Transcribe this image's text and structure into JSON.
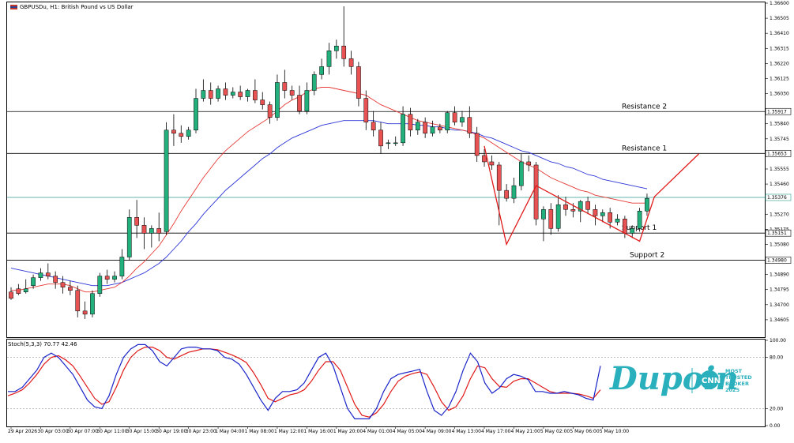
{
  "chart_data": {
    "type": "candlestick",
    "title": "GBPUSDu, H1: British Pound vs US Dollar",
    "price_axis": {
      "range": [
        1.345,
        1.366
      ],
      "ticks": [
        "1.36600",
        "1.36505",
        "1.36410",
        "1.36315",
        "1.36220",
        "1.36125",
        "1.36030",
        "1.35840",
        "1.35745",
        "1.35555",
        "1.35460",
        "1.35270",
        "1.35175",
        "1.35080",
        "1.34890",
        "1.34795",
        "1.34700",
        "1.34605"
      ]
    },
    "time_axis": {
      "labels": [
        "29 Apr 2026",
        "30 Apr 03:00",
        "30 Apr 07:00",
        "30 Apr 11:00",
        "30 Apr 15:00",
        "30 Apr 19:00",
        "30 Apr 23:00",
        "1 May 04:00",
        "1 May 08:00",
        "1 May 12:00",
        "1 May 16:00",
        "1 May 20:00",
        "4 May 01:00",
        "4 May 05:00",
        "4 May 09:00",
        "4 May 13:00",
        "4 May 17:00",
        "4 May 21:00",
        "5 May 02:00",
        "5 May 06:00",
        "5 May 10:00"
      ],
      "label_index": [
        0,
        4,
        8,
        12,
        16,
        20,
        24,
        28,
        32,
        36,
        40,
        44,
        48,
        52,
        56,
        60,
        64,
        68,
        72,
        76,
        80
      ]
    },
    "levels": [
      {
        "name": "Resistance 2",
        "price": 1.35917,
        "label": "1.35917",
        "color": "#000000"
      },
      {
        "name": "Resistance 1",
        "price": 1.35653,
        "label": "1.35653",
        "color": "#000000"
      },
      {
        "name": "",
        "price": 1.35376,
        "label": "1.35376",
        "color": "#2a9d8f"
      },
      {
        "name": "Support 1",
        "price": 1.35151,
        "label": "1.35151",
        "color": "#000000"
      },
      {
        "name": "Support 2",
        "price": 1.3498,
        "label": "1.34980",
        "color": "#000000"
      }
    ],
    "candles": [
      [
        1.3478,
        1.3481,
        1.3474,
        1.3473
      ],
      [
        1.348,
        1.3483,
        1.3477,
        1.3476
      ],
      [
        1.3478,
        1.3486,
        1.348,
        1.3477
      ],
      [
        1.3482,
        1.3489,
        1.3487,
        1.348
      ],
      [
        1.3487,
        1.3493,
        1.349,
        1.3485
      ],
      [
        1.349,
        1.3496,
        1.3488,
        1.3486
      ],
      [
        1.3488,
        1.3491,
        1.3484,
        1.348
      ],
      [
        1.3484,
        1.3488,
        1.3481,
        1.3477
      ],
      [
        1.3481,
        1.3485,
        1.3479,
        1.3476
      ],
      [
        1.3479,
        1.3482,
        1.3466,
        1.3462
      ],
      [
        1.3466,
        1.3472,
        1.3464,
        1.3461
      ],
      [
        1.3464,
        1.3479,
        1.3477,
        1.3462
      ],
      [
        1.3477,
        1.349,
        1.3488,
        1.3475
      ],
      [
        1.3488,
        1.3492,
        1.3486,
        1.3483
      ],
      [
        1.3486,
        1.3491,
        1.3488,
        1.3484
      ],
      [
        1.3488,
        1.3505,
        1.35,
        1.3486
      ],
      [
        1.35,
        1.353,
        1.3525,
        1.3498
      ],
      [
        1.3525,
        1.3536,
        1.352,
        1.3512
      ],
      [
        1.352,
        1.3525,
        1.3515,
        1.3505
      ],
      [
        1.3515,
        1.352,
        1.3518,
        1.3506
      ],
      [
        1.3518,
        1.3528,
        1.3515,
        1.351
      ],
      [
        1.3516,
        1.3585,
        1.358,
        1.3514
      ],
      [
        1.358,
        1.359,
        1.3578,
        1.357
      ],
      [
        1.3578,
        1.3583,
        1.3576,
        1.3572
      ],
      [
        1.3576,
        1.3582,
        1.358,
        1.3574
      ],
      [
        1.358,
        1.3606,
        1.36,
        1.3578
      ],
      [
        1.36,
        1.3612,
        1.3605,
        1.3598
      ],
      [
        1.3605,
        1.361,
        1.36,
        1.3596
      ],
      [
        1.36,
        1.3608,
        1.3606,
        1.3598
      ],
      [
        1.3606,
        1.361,
        1.3602,
        1.3599
      ],
      [
        1.3602,
        1.3607,
        1.3604,
        1.36
      ],
      [
        1.3604,
        1.3608,
        1.3601,
        1.3599
      ],
      [
        1.3601,
        1.3606,
        1.3605,
        1.3598
      ],
      [
        1.3605,
        1.3612,
        1.3599,
        1.3597
      ],
      [
        1.3599,
        1.3604,
        1.3596,
        1.3593
      ],
      [
        1.3596,
        1.3598,
        1.3588,
        1.3584
      ],
      [
        1.3588,
        1.3615,
        1.361,
        1.3586
      ],
      [
        1.361,
        1.3618,
        1.3605,
        1.36
      ],
      [
        1.3605,
        1.3608,
        1.3602,
        1.3599
      ],
      [
        1.3602,
        1.3608,
        1.3592,
        1.359
      ],
      [
        1.3592,
        1.361,
        1.3605,
        1.359
      ],
      [
        1.3605,
        1.3617,
        1.3615,
        1.3602
      ],
      [
        1.3615,
        1.3625,
        1.362,
        1.3612
      ],
      [
        1.362,
        1.3635,
        1.363,
        1.3615
      ],
      [
        1.363,
        1.3637,
        1.3633,
        1.3625
      ],
      [
        1.3633,
        1.3658,
        1.3625,
        1.362
      ],
      [
        1.3625,
        1.363,
        1.362,
        1.3615
      ],
      [
        1.362,
        1.3623,
        1.36,
        1.3595
      ],
      [
        1.36,
        1.3605,
        1.3585,
        1.358
      ],
      [
        1.3585,
        1.3592,
        1.358,
        1.3576
      ],
      [
        1.358,
        1.3585,
        1.357,
        1.3565
      ],
      [
        1.3572,
        1.3574,
        1.3572,
        1.3568
      ],
      [
        1.3572,
        1.3576,
        1.3572,
        1.357
      ],
      [
        1.3572,
        1.3595,
        1.359,
        1.357
      ],
      [
        1.359,
        1.3594,
        1.358,
        1.3576
      ],
      [
        1.358,
        1.3587,
        1.3585,
        1.3577
      ],
      [
        1.3585,
        1.3588,
        1.3578,
        1.3575
      ],
      [
        1.3578,
        1.3586,
        1.3582,
        1.3576
      ],
      [
        1.3582,
        1.3584,
        1.358,
        1.3578
      ],
      [
        1.358,
        1.3592,
        1.3591,
        1.3578
      ],
      [
        1.3591,
        1.3595,
        1.3585,
        1.3583
      ],
      [
        1.3585,
        1.3592,
        1.3588,
        1.3582
      ],
      [
        1.3588,
        1.3595,
        1.3578,
        1.3575
      ],
      [
        1.3578,
        1.3582,
        1.3564,
        1.356
      ],
      [
        1.3564,
        1.3568,
        1.356,
        1.3557
      ],
      [
        1.356,
        1.3564,
        1.3558,
        1.3555
      ],
      [
        1.3558,
        1.356,
        1.3542,
        1.352
      ],
      [
        1.3542,
        1.3546,
        1.3537,
        1.3535
      ],
      [
        1.3537,
        1.355,
        1.3545,
        1.3534
      ],
      [
        1.3545,
        1.3565,
        1.356,
        1.3542
      ],
      [
        1.356,
        1.3564,
        1.3558,
        1.3554
      ],
      [
        1.3558,
        1.356,
        1.3524,
        1.352
      ],
      [
        1.3524,
        1.3532,
        1.353,
        1.351
      ],
      [
        1.353,
        1.3534,
        1.3518,
        1.3514
      ],
      [
        1.3518,
        1.3539,
        1.3533,
        1.3516
      ],
      [
        1.3533,
        1.3538,
        1.353,
        1.3526
      ],
      [
        1.353,
        1.3534,
        1.3529,
        1.3525
      ],
      [
        1.3529,
        1.3536,
        1.3535,
        1.3522
      ],
      [
        1.3535,
        1.3538,
        1.353,
        1.3527
      ],
      [
        1.353,
        1.3533,
        1.3526,
        1.352
      ],
      [
        1.3526,
        1.353,
        1.3528,
        1.3522
      ],
      [
        1.3528,
        1.3531,
        1.3522,
        1.3518
      ],
      [
        1.3522,
        1.3527,
        1.3524,
        1.352
      ],
      [
        1.3524,
        1.3526,
        1.3515,
        1.3512
      ],
      [
        1.3515,
        1.352,
        1.3518,
        1.3512
      ],
      [
        1.3518,
        1.3531,
        1.3529,
        1.3516
      ],
      [
        1.3529,
        1.354,
        1.3537,
        1.3526
      ]
    ],
    "ma_fast": [
      1.3479,
      1.3479,
      1.348,
      1.3481,
      1.3482,
      1.3483,
      1.3483,
      1.3483,
      1.3482,
      1.348,
      1.3478,
      1.3478,
      1.3479,
      1.348,
      1.3481,
      1.3484,
      1.3488,
      1.3493,
      1.3497,
      1.3502,
      1.3507,
      1.3514,
      1.3521,
      1.3529,
      1.3536,
      1.3543,
      1.355,
      1.3556,
      1.3562,
      1.3567,
      1.3571,
      1.3575,
      1.3579,
      1.3582,
      1.3585,
      1.3588,
      1.3592,
      1.3596,
      1.3599,
      1.3601,
      1.3604,
      1.3606,
      1.3607,
      1.3607,
      1.3606,
      1.3605,
      1.3604,
      1.3603,
      1.3602,
      1.3599,
      1.3596,
      1.3594,
      1.3592,
      1.359,
      1.3588,
      1.3586,
      1.3585,
      1.3584,
      1.3583,
      1.3582,
      1.3581,
      1.358,
      1.3579,
      1.3577,
      1.3575,
      1.3572,
      1.3569,
      1.3566,
      1.3563,
      1.356,
      1.3558,
      1.3556,
      1.3553,
      1.355,
      1.3548,
      1.3546,
      1.3544,
      1.3542,
      1.3541,
      1.3539,
      1.3538,
      1.3537,
      1.3536,
      1.3535,
      1.3534,
      1.3534,
      1.3534
    ],
    "ma_slow": [
      1.3493,
      1.3492,
      1.3491,
      1.349,
      1.3489,
      1.3488,
      1.3487,
      1.3486,
      1.3485,
      1.3484,
      1.3483,
      1.3482,
      1.3482,
      1.3482,
      1.3483,
      1.3484,
      1.3486,
      1.3488,
      1.349,
      1.3493,
      1.3496,
      1.35,
      1.3505,
      1.351,
      1.3516,
      1.3521,
      1.3527,
      1.3532,
      1.3537,
      1.3542,
      1.3546,
      1.355,
      1.3554,
      1.3558,
      1.3562,
      1.3565,
      1.3569,
      1.3572,
      1.3575,
      1.3577,
      1.3579,
      1.3581,
      1.3583,
      1.3584,
      1.3585,
      1.3586,
      1.3586,
      1.3586,
      1.3586,
      1.3586,
      1.3585,
      1.3584,
      1.3584,
      1.3584,
      1.3584,
      1.3583,
      1.3583,
      1.3582,
      1.3582,
      1.3581,
      1.358,
      1.358,
      1.3579,
      1.3578,
      1.3576,
      1.3575,
      1.3573,
      1.3571,
      1.3569,
      1.3567,
      1.3566,
      1.3564,
      1.3562,
      1.356,
      1.3559,
      1.3557,
      1.3556,
      1.3554,
      1.3552,
      1.3551,
      1.3549,
      1.3548,
      1.3547,
      1.3546,
      1.3545,
      1.3544,
      1.3543
    ],
    "pattern_line": [
      {
        "i": 64,
        "p": 1.357
      },
      {
        "i": 67,
        "p": 1.3508
      },
      {
        "i": 71,
        "p": 1.3545
      },
      {
        "i": 85,
        "p": 1.351
      },
      {
        "i": 87,
        "p": 1.3538
      },
      {
        "i": 93,
        "p": 1.3565
      }
    ],
    "stochastic": {
      "label": "Stoch(5,3,3) 70.77 42.46",
      "ticks": [
        "100.00",
        "80.00",
        "20.00",
        "0.00"
      ],
      "range": [
        0,
        100
      ],
      "k": [
        40,
        40,
        45,
        55,
        65,
        80,
        85,
        80,
        70,
        60,
        45,
        30,
        22,
        20,
        35,
        60,
        80,
        90,
        95,
        95,
        88,
        75,
        70,
        80,
        90,
        92,
        92,
        90,
        90,
        88,
        80,
        78,
        72,
        60,
        45,
        30,
        18,
        32,
        40,
        40,
        42,
        50,
        65,
        80,
        85,
        70,
        45,
        20,
        8,
        8,
        8,
        20,
        40,
        55,
        60,
        62,
        64,
        66,
        40,
        18,
        12,
        22,
        40,
        65,
        85,
        75,
        50,
        38,
        44,
        55,
        60,
        58,
        54,
        40,
        40,
        38,
        38,
        40,
        38,
        36,
        32,
        30,
        70
      ],
      "d": [
        35,
        38,
        42,
        50,
        60,
        72,
        80,
        82,
        77,
        70,
        58,
        45,
        32,
        25,
        28,
        45,
        65,
        80,
        88,
        92,
        92,
        88,
        80,
        78,
        82,
        86,
        88,
        90,
        90,
        89,
        86,
        83,
        79,
        74,
        62,
        48,
        32,
        28,
        32,
        36,
        38,
        42,
        52,
        65,
        75,
        75,
        65,
        45,
        25,
        12,
        10,
        15,
        25,
        40,
        52,
        58,
        61,
        63,
        60,
        45,
        28,
        18,
        22,
        35,
        55,
        70,
        68,
        55,
        46,
        45,
        52,
        55,
        55,
        50,
        45,
        40,
        38,
        38,
        38,
        37,
        35,
        32,
        42
      ]
    }
  },
  "branding": {
    "logo_text": "Dupoin",
    "badge_text": "CNN",
    "tagline": [
      "MOST",
      "TRUSTED",
      "BROKER",
      "2025"
    ]
  }
}
